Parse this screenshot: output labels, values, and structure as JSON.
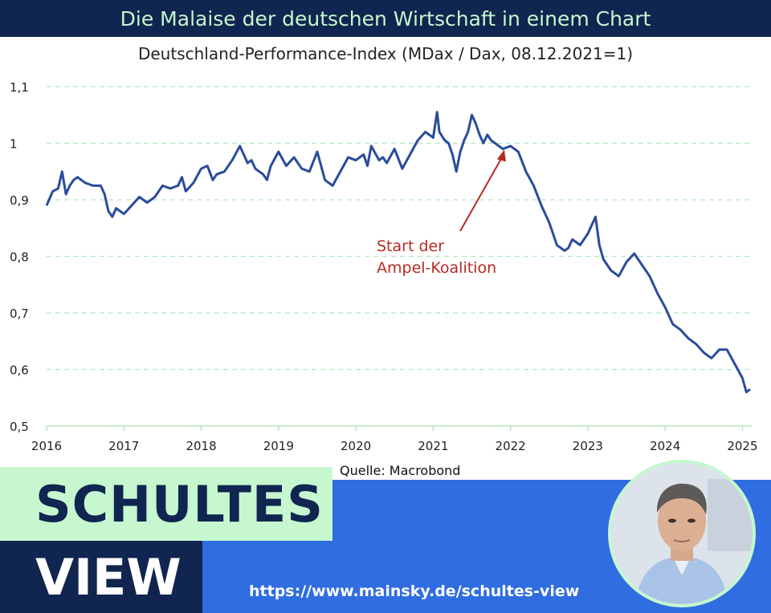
{
  "header": {
    "title": "Die Malaise der deutschen Wirtschaft in einem Chart",
    "subtitle": "Deutschland-Performance-Index (MDax / Dax, 08.12.2021=1)"
  },
  "source": "Quelle: Macrobond",
  "brand": {
    "line1": "SCHULTES",
    "line2": "VIEW",
    "url": "https://www.mainsky.de/schultes-view"
  },
  "colors": {
    "navy": "#10254f",
    "mint": "#c6f7cf",
    "blue": "#2f6de0",
    "series": "#2b4c9b",
    "annotation": "#b52a22",
    "grid": "#b5e8bd"
  },
  "chart_data": {
    "type": "line",
    "title": "Deutschland-Performance-Index (MDax / Dax, 08.12.2021=1)",
    "xlabel": "",
    "ylabel": "",
    "xlim": [
      2016,
      2025.12
    ],
    "ylim": [
      0.5,
      1.1
    ],
    "x_ticks": [
      2016,
      2017,
      2018,
      2019,
      2020,
      2021,
      2022,
      2023,
      2024,
      2025
    ],
    "x_tick_labels": [
      "2016",
      "2017",
      "2018",
      "2019",
      "2020",
      "2021",
      "2022",
      "2023",
      "2024",
      "2025"
    ],
    "y_ticks": [
      0.5,
      0.6,
      0.7,
      0.8,
      0.9,
      1.0,
      1.1
    ],
    "y_tick_labels": [
      "0,5",
      "0,6",
      "0,7",
      "0,8",
      "0,9",
      "1",
      "1,1"
    ],
    "grid": "horizontal dashed",
    "legend": "none",
    "annotation": {
      "lines": [
        "Start der",
        "Ampel-Koalition"
      ],
      "points_to": {
        "x": 2021.92,
        "y": 1.0
      }
    },
    "series": [
      {
        "x": [
          2016.0,
          2016.08,
          2016.15,
          2016.2,
          2016.25,
          2016.3,
          2016.35,
          2016.4,
          2016.5,
          2016.6,
          2016.7,
          2016.75,
          2016.8,
          2016.85,
          2016.9,
          2016.95,
          2017.0,
          2017.1,
          2017.2,
          2017.3,
          2017.4,
          2017.5,
          2017.6,
          2017.7,
          2017.75,
          2017.8,
          2017.9,
          2018.0,
          2018.08,
          2018.15,
          2018.2,
          2018.3,
          2018.4,
          2018.5,
          2018.6,
          2018.65,
          2018.7,
          2018.8,
          2018.85,
          2018.9,
          2019.0,
          2019.1,
          2019.2,
          2019.3,
          2019.4,
          2019.5,
          2019.6,
          2019.7,
          2019.8,
          2019.9,
          2020.0,
          2020.1,
          2020.15,
          2020.2,
          2020.3,
          2020.35,
          2020.4,
          2020.5,
          2020.6,
          2020.7,
          2020.8,
          2020.9,
          2021.0,
          2021.05,
          2021.08,
          2021.15,
          2021.2,
          2021.25,
          2021.3,
          2021.35,
          2021.4,
          2021.45,
          2021.5,
          2021.55,
          2021.6,
          2021.65,
          2021.7,
          2021.75,
          2021.8,
          2021.9,
          2022.0,
          2022.1,
          2022.2,
          2022.3,
          2022.4,
          2022.5,
          2022.6,
          2022.7,
          2022.75,
          2022.8,
          2022.9,
          2023.0,
          2023.05,
          2023.1,
          2023.15,
          2023.2,
          2023.3,
          2023.4,
          2023.5,
          2023.6,
          2023.7,
          2023.8,
          2023.9,
          2024.0,
          2024.1,
          2024.2,
          2024.3,
          2024.4,
          2024.5,
          2024.6,
          2024.7,
          2024.8,
          2024.9,
          2025.0,
          2025.05,
          2025.1
        ],
        "values": [
          0.89,
          0.915,
          0.92,
          0.95,
          0.91,
          0.925,
          0.935,
          0.94,
          0.93,
          0.925,
          0.925,
          0.91,
          0.88,
          0.87,
          0.885,
          0.88,
          0.875,
          0.89,
          0.905,
          0.895,
          0.905,
          0.925,
          0.92,
          0.925,
          0.94,
          0.915,
          0.93,
          0.955,
          0.96,
          0.935,
          0.945,
          0.95,
          0.97,
          0.995,
          0.965,
          0.97,
          0.955,
          0.945,
          0.935,
          0.96,
          0.985,
          0.96,
          0.975,
          0.955,
          0.95,
          0.985,
          0.935,
          0.925,
          0.95,
          0.975,
          0.97,
          0.98,
          0.96,
          0.995,
          0.97,
          0.975,
          0.965,
          0.99,
          0.955,
          0.98,
          1.005,
          1.02,
          1.01,
          1.055,
          1.02,
          1.005,
          1.0,
          0.98,
          0.95,
          0.985,
          1.005,
          1.02,
          1.05,
          1.035,
          1.015,
          1.0,
          1.015,
          1.005,
          1.0,
          0.99,
          0.995,
          0.985,
          0.95,
          0.925,
          0.89,
          0.86,
          0.82,
          0.81,
          0.815,
          0.83,
          0.82,
          0.84,
          0.855,
          0.87,
          0.82,
          0.795,
          0.775,
          0.765,
          0.79,
          0.805,
          0.785,
          0.765,
          0.735,
          0.71,
          0.68,
          0.67,
          0.655,
          0.645,
          0.63,
          0.62,
          0.635,
          0.635,
          0.61,
          0.585,
          0.56,
          0.565
        ]
      }
    ]
  }
}
